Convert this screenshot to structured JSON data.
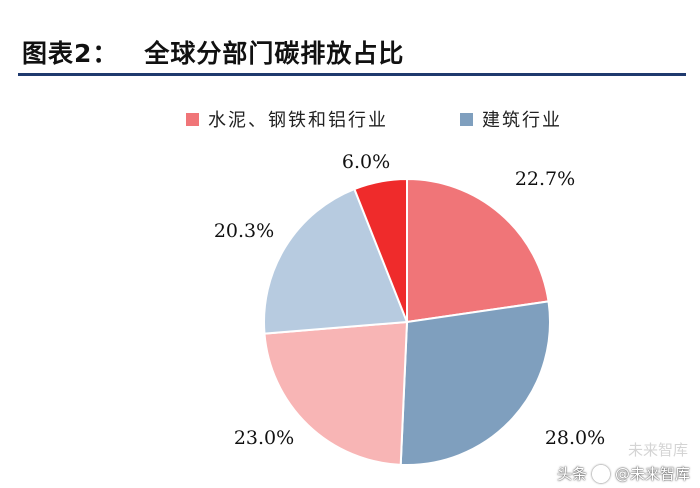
{
  "header": {
    "figure_number": "图表2：",
    "title": "全球分部门碳排放占比"
  },
  "watermark": {
    "platform": "头条",
    "account": "@未来智库",
    "background_text": "未来智库"
  },
  "chart_data": {
    "type": "pie",
    "title": "全球分部门碳排放占比",
    "legend": [
      "水泥、钢铁和铝行业",
      "建筑行业"
    ],
    "legend_colors": [
      "#f07578",
      "#7f9fbe"
    ],
    "legend_placement": "top",
    "start_angle_deg": 0,
    "direction": "clockwise",
    "slices": [
      {
        "value": 22.7,
        "label": "22.7%",
        "color": "#f07578"
      },
      {
        "value": 28.0,
        "label": "28.0%",
        "color": "#7f9fbe"
      },
      {
        "value": 23.0,
        "label": "23.0%",
        "color": "#f8b5b5"
      },
      {
        "value": 20.3,
        "label": "20.3%",
        "color": "#b7cbe0"
      },
      {
        "value": 6.0,
        "label": "6.0%",
        "color": "#ef2b2b"
      }
    ]
  }
}
